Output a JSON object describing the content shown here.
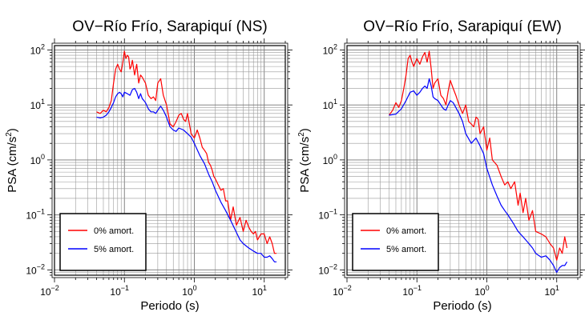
{
  "chart_data": [
    {
      "type": "line",
      "title": "OV−Río Frío, Sarapiquí (NS)",
      "xlabel": "Periodo (s)",
      "ylabel_prefix": "PSA (cm/s",
      "ylabel_sup": "2",
      "ylabel_suffix": ")",
      "xscale": "log",
      "yscale": "log",
      "xlim": [
        0.01,
        20
      ],
      "ylim": [
        0.008,
        120
      ],
      "grid": true,
      "legend_position": "bottom-left",
      "x_ticks": [
        {
          "base": "10",
          "exp": "−2"
        },
        {
          "base": "10",
          "exp": "−1"
        },
        {
          "base": "10",
          "exp": "0"
        },
        {
          "base": "10",
          "exp": "1"
        }
      ],
      "y_ticks": [
        {
          "base": "10",
          "exp": "−2"
        },
        {
          "base": "10",
          "exp": "−1"
        },
        {
          "base": "10",
          "exp": "0"
        },
        {
          "base": "10",
          "exp": "1"
        },
        {
          "base": "10",
          "exp": "2"
        }
      ],
      "series": [
        {
          "name": "0% amort.",
          "color": "#ff0000",
          "x": [
            0.04,
            0.045,
            0.05,
            0.055,
            0.06,
            0.065,
            0.07,
            0.075,
            0.08,
            0.085,
            0.09,
            0.095,
            0.1,
            0.105,
            0.11,
            0.115,
            0.12,
            0.125,
            0.13,
            0.14,
            0.15,
            0.16,
            0.17,
            0.18,
            0.19,
            0.2,
            0.22,
            0.24,
            0.26,
            0.28,
            0.3,
            0.33,
            0.36,
            0.4,
            0.45,
            0.5,
            0.55,
            0.6,
            0.65,
            0.7,
            0.75,
            0.8,
            0.9,
            1.0,
            1.1,
            1.2,
            1.3,
            1.4,
            1.5,
            1.6,
            1.7,
            1.8,
            1.9,
            2.0,
            2.2,
            2.4,
            2.6,
            2.8,
            3.0,
            3.3,
            3.6,
            4.0,
            4.5,
            5.0,
            5.5,
            6.0,
            6.5,
            7.0,
            7.5,
            8.0,
            9.0,
            10,
            11,
            12,
            13,
            14,
            15
          ],
          "values": [
            7.5,
            7.0,
            8.0,
            7.5,
            9.0,
            12,
            25,
            45,
            55,
            45,
            40,
            60,
            95,
            70,
            80,
            75,
            45,
            50,
            65,
            35,
            55,
            25,
            35,
            32,
            28,
            25,
            15,
            13,
            14,
            12,
            25,
            30,
            15,
            10,
            4.5,
            4.0,
            5.0,
            6.5,
            7.0,
            5.5,
            5.0,
            7.0,
            3.0,
            2.5,
            3.5,
            2.5,
            1.7,
            1.5,
            1.3,
            0.9,
            0.8,
            0.65,
            0.5,
            0.45,
            0.35,
            0.28,
            0.3,
            0.18,
            0.18,
            0.08,
            0.14,
            0.065,
            0.09,
            0.05,
            0.08,
            0.06,
            0.05,
            0.045,
            0.05,
            0.035,
            0.045,
            0.045,
            0.03,
            0.04,
            0.03,
            0.02,
            0.02
          ]
        },
        {
          "name": "5% amort.",
          "color": "#0000ff",
          "x": [
            0.04,
            0.045,
            0.05,
            0.055,
            0.06,
            0.065,
            0.07,
            0.075,
            0.08,
            0.085,
            0.09,
            0.095,
            0.1,
            0.11,
            0.12,
            0.13,
            0.14,
            0.15,
            0.16,
            0.17,
            0.18,
            0.19,
            0.2,
            0.22,
            0.24,
            0.26,
            0.28,
            0.3,
            0.33,
            0.36,
            0.4,
            0.45,
            0.5,
            0.55,
            0.6,
            0.7,
            0.8,
            0.9,
            1.0,
            1.2,
            1.4,
            1.6,
            1.8,
            2.0,
            2.4,
            2.8,
            3.3,
            4.0,
            4.5,
            5.0,
            6.0,
            7.0,
            8.0,
            9.0,
            10,
            11,
            12,
            13,
            14,
            15
          ],
          "values": [
            6.0,
            5.8,
            6.0,
            6.5,
            7.5,
            9.0,
            11,
            14,
            16,
            17,
            16,
            14,
            17,
            16,
            15,
            19,
            20,
            17,
            13,
            16,
            13,
            12,
            11,
            8.5,
            7.5,
            7.5,
            7.0,
            8.0,
            9.5,
            8.0,
            6.0,
            4.0,
            3.5,
            3.3,
            3.8,
            3.5,
            3.0,
            2.6,
            2.0,
            1.2,
            0.85,
            0.55,
            0.4,
            0.28,
            0.17,
            0.12,
            0.08,
            0.048,
            0.035,
            0.03,
            0.025,
            0.022,
            0.02,
            0.02,
            0.017,
            0.017,
            0.018,
            0.016,
            0.014,
            0.014
          ]
        }
      ]
    },
    {
      "type": "line",
      "title": "OV−Río Frío, Sarapiquí (EW)",
      "xlabel": "Periodo (s)",
      "ylabel_prefix": "PSA (cm/s",
      "ylabel_sup": "2",
      "ylabel_suffix": ")",
      "xscale": "log",
      "yscale": "log",
      "xlim": [
        0.01,
        20
      ],
      "ylim": [
        0.008,
        120
      ],
      "grid": true,
      "legend_position": "bottom-left",
      "x_ticks": [
        {
          "base": "10",
          "exp": "−2"
        },
        {
          "base": "10",
          "exp": "−1"
        },
        {
          "base": "10",
          "exp": "0"
        },
        {
          "base": "10",
          "exp": "1"
        }
      ],
      "y_ticks": [
        {
          "base": "10",
          "exp": "−2"
        },
        {
          "base": "10",
          "exp": "−1"
        },
        {
          "base": "10",
          "exp": "0"
        },
        {
          "base": "10",
          "exp": "1"
        },
        {
          "base": "10",
          "exp": "2"
        }
      ],
      "series": [
        {
          "name": "0% amort.",
          "color": "#ff0000",
          "x": [
            0.04,
            0.045,
            0.05,
            0.055,
            0.06,
            0.065,
            0.07,
            0.075,
            0.08,
            0.085,
            0.09,
            0.1,
            0.11,
            0.12,
            0.13,
            0.14,
            0.15,
            0.16,
            0.17,
            0.18,
            0.2,
            0.22,
            0.24,
            0.26,
            0.28,
            0.3,
            0.33,
            0.36,
            0.4,
            0.45,
            0.5,
            0.55,
            0.6,
            0.65,
            0.7,
            0.75,
            0.8,
            0.9,
            1.0,
            1.1,
            1.2,
            1.4,
            1.6,
            1.8,
            2.0,
            2.2,
            2.5,
            2.8,
            3.0,
            3.3,
            3.6,
            4.0,
            4.5,
            5.0,
            6.0,
            7.0,
            8.0,
            9.0,
            10,
            11,
            12,
            13,
            14
          ],
          "values": [
            6.5,
            8.0,
            11,
            9.0,
            12,
            20,
            35,
            70,
            80,
            60,
            50,
            70,
            55,
            75,
            90,
            60,
            95,
            45,
            20,
            25,
            30,
            15,
            13,
            10,
            18,
            28,
            20,
            15,
            10,
            7.0,
            10,
            5.0,
            4.5,
            4.0,
            6.0,
            5.5,
            3.0,
            4.0,
            1.5,
            2.5,
            1.0,
            0.8,
            0.5,
            0.35,
            0.4,
            0.3,
            0.4,
            0.15,
            0.25,
            0.11,
            0.2,
            0.08,
            0.12,
            0.05,
            0.045,
            0.04,
            0.03,
            0.025,
            0.015,
            0.025,
            0.02,
            0.04,
            0.025
          ]
        },
        {
          "name": "5% amort.",
          "color": "#0000ff",
          "x": [
            0.04,
            0.05,
            0.06,
            0.07,
            0.08,
            0.09,
            0.1,
            0.11,
            0.12,
            0.13,
            0.14,
            0.15,
            0.16,
            0.17,
            0.18,
            0.2,
            0.22,
            0.24,
            0.26,
            0.28,
            0.3,
            0.33,
            0.36,
            0.4,
            0.45,
            0.5,
            0.6,
            0.7,
            0.8,
            0.9,
            1.0,
            1.2,
            1.4,
            1.6,
            1.8,
            2.0,
            2.4,
            2.8,
            3.3,
            4.0,
            4.5,
            5.0,
            6.0,
            7.0,
            8.0,
            9.0,
            10,
            11,
            12,
            13,
            14
          ],
          "values": [
            6.5,
            6.8,
            8.5,
            12,
            17,
            18,
            15,
            17,
            20,
            22,
            20,
            30,
            22,
            14,
            13,
            12,
            10,
            8.5,
            8.0,
            10,
            12,
            11,
            9.0,
            7.0,
            5.0,
            3.0,
            2.0,
            2.5,
            1.8,
            1.3,
            0.7,
            0.35,
            0.22,
            0.15,
            0.12,
            0.1,
            0.07,
            0.05,
            0.04,
            0.03,
            0.025,
            0.02,
            0.017,
            0.018,
            0.015,
            0.012,
            0.009,
            0.011,
            0.012,
            0.012,
            0.014
          ]
        }
      ]
    }
  ]
}
